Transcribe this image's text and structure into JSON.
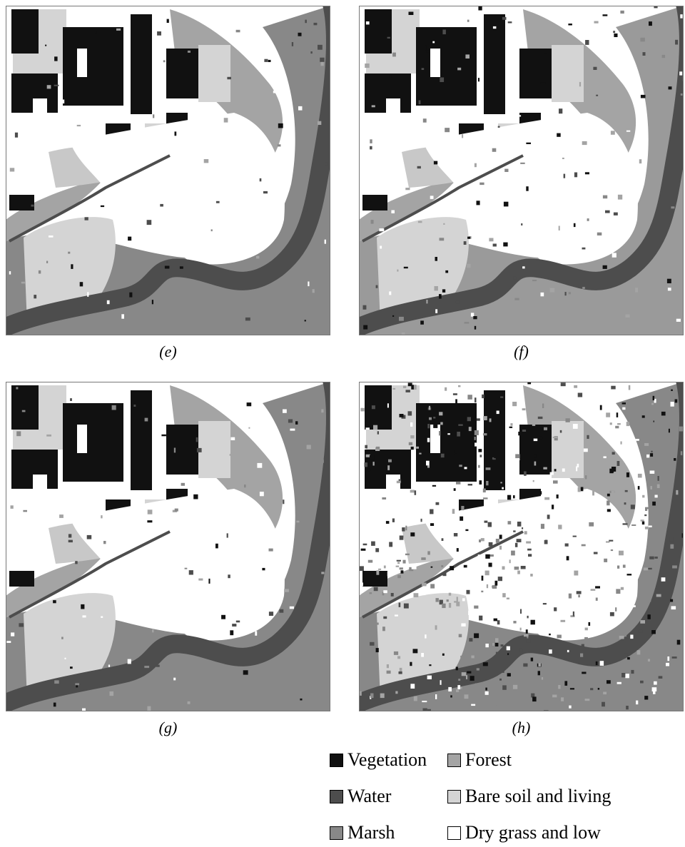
{
  "panels": [
    {
      "id": "e",
      "caption": "(e)",
      "speckle": 0.03
    },
    {
      "id": "f",
      "caption": "(f)",
      "speckle": 0.06
    },
    {
      "id": "g",
      "caption": "(g)",
      "speckle": 0.04
    },
    {
      "id": "h",
      "caption": "(h)",
      "speckle": 0.22
    }
  ],
  "legend": [
    {
      "label": "Vegetation",
      "color": "#111111"
    },
    {
      "label": "Forest",
      "color": "#a4a4a4"
    },
    {
      "label": "Water",
      "color": "#4d4d4d"
    },
    {
      "label": "Bare soil and living",
      "color": "#d4d4d4"
    },
    {
      "label": "Marsh",
      "color": "#888888"
    },
    {
      "label": "Dry grass and low",
      "color": "#ffffff"
    }
  ],
  "captions": {
    "e": "(e)",
    "f": "(f)",
    "g": "(g)",
    "h": "(h)"
  },
  "legend_labels": {
    "vegetation": "Vegetation",
    "forest": "Forest",
    "water": "Water",
    "bare_soil": "Bare soil and living",
    "marsh": "Marsh",
    "dry_grass": "Dry grass and low"
  }
}
